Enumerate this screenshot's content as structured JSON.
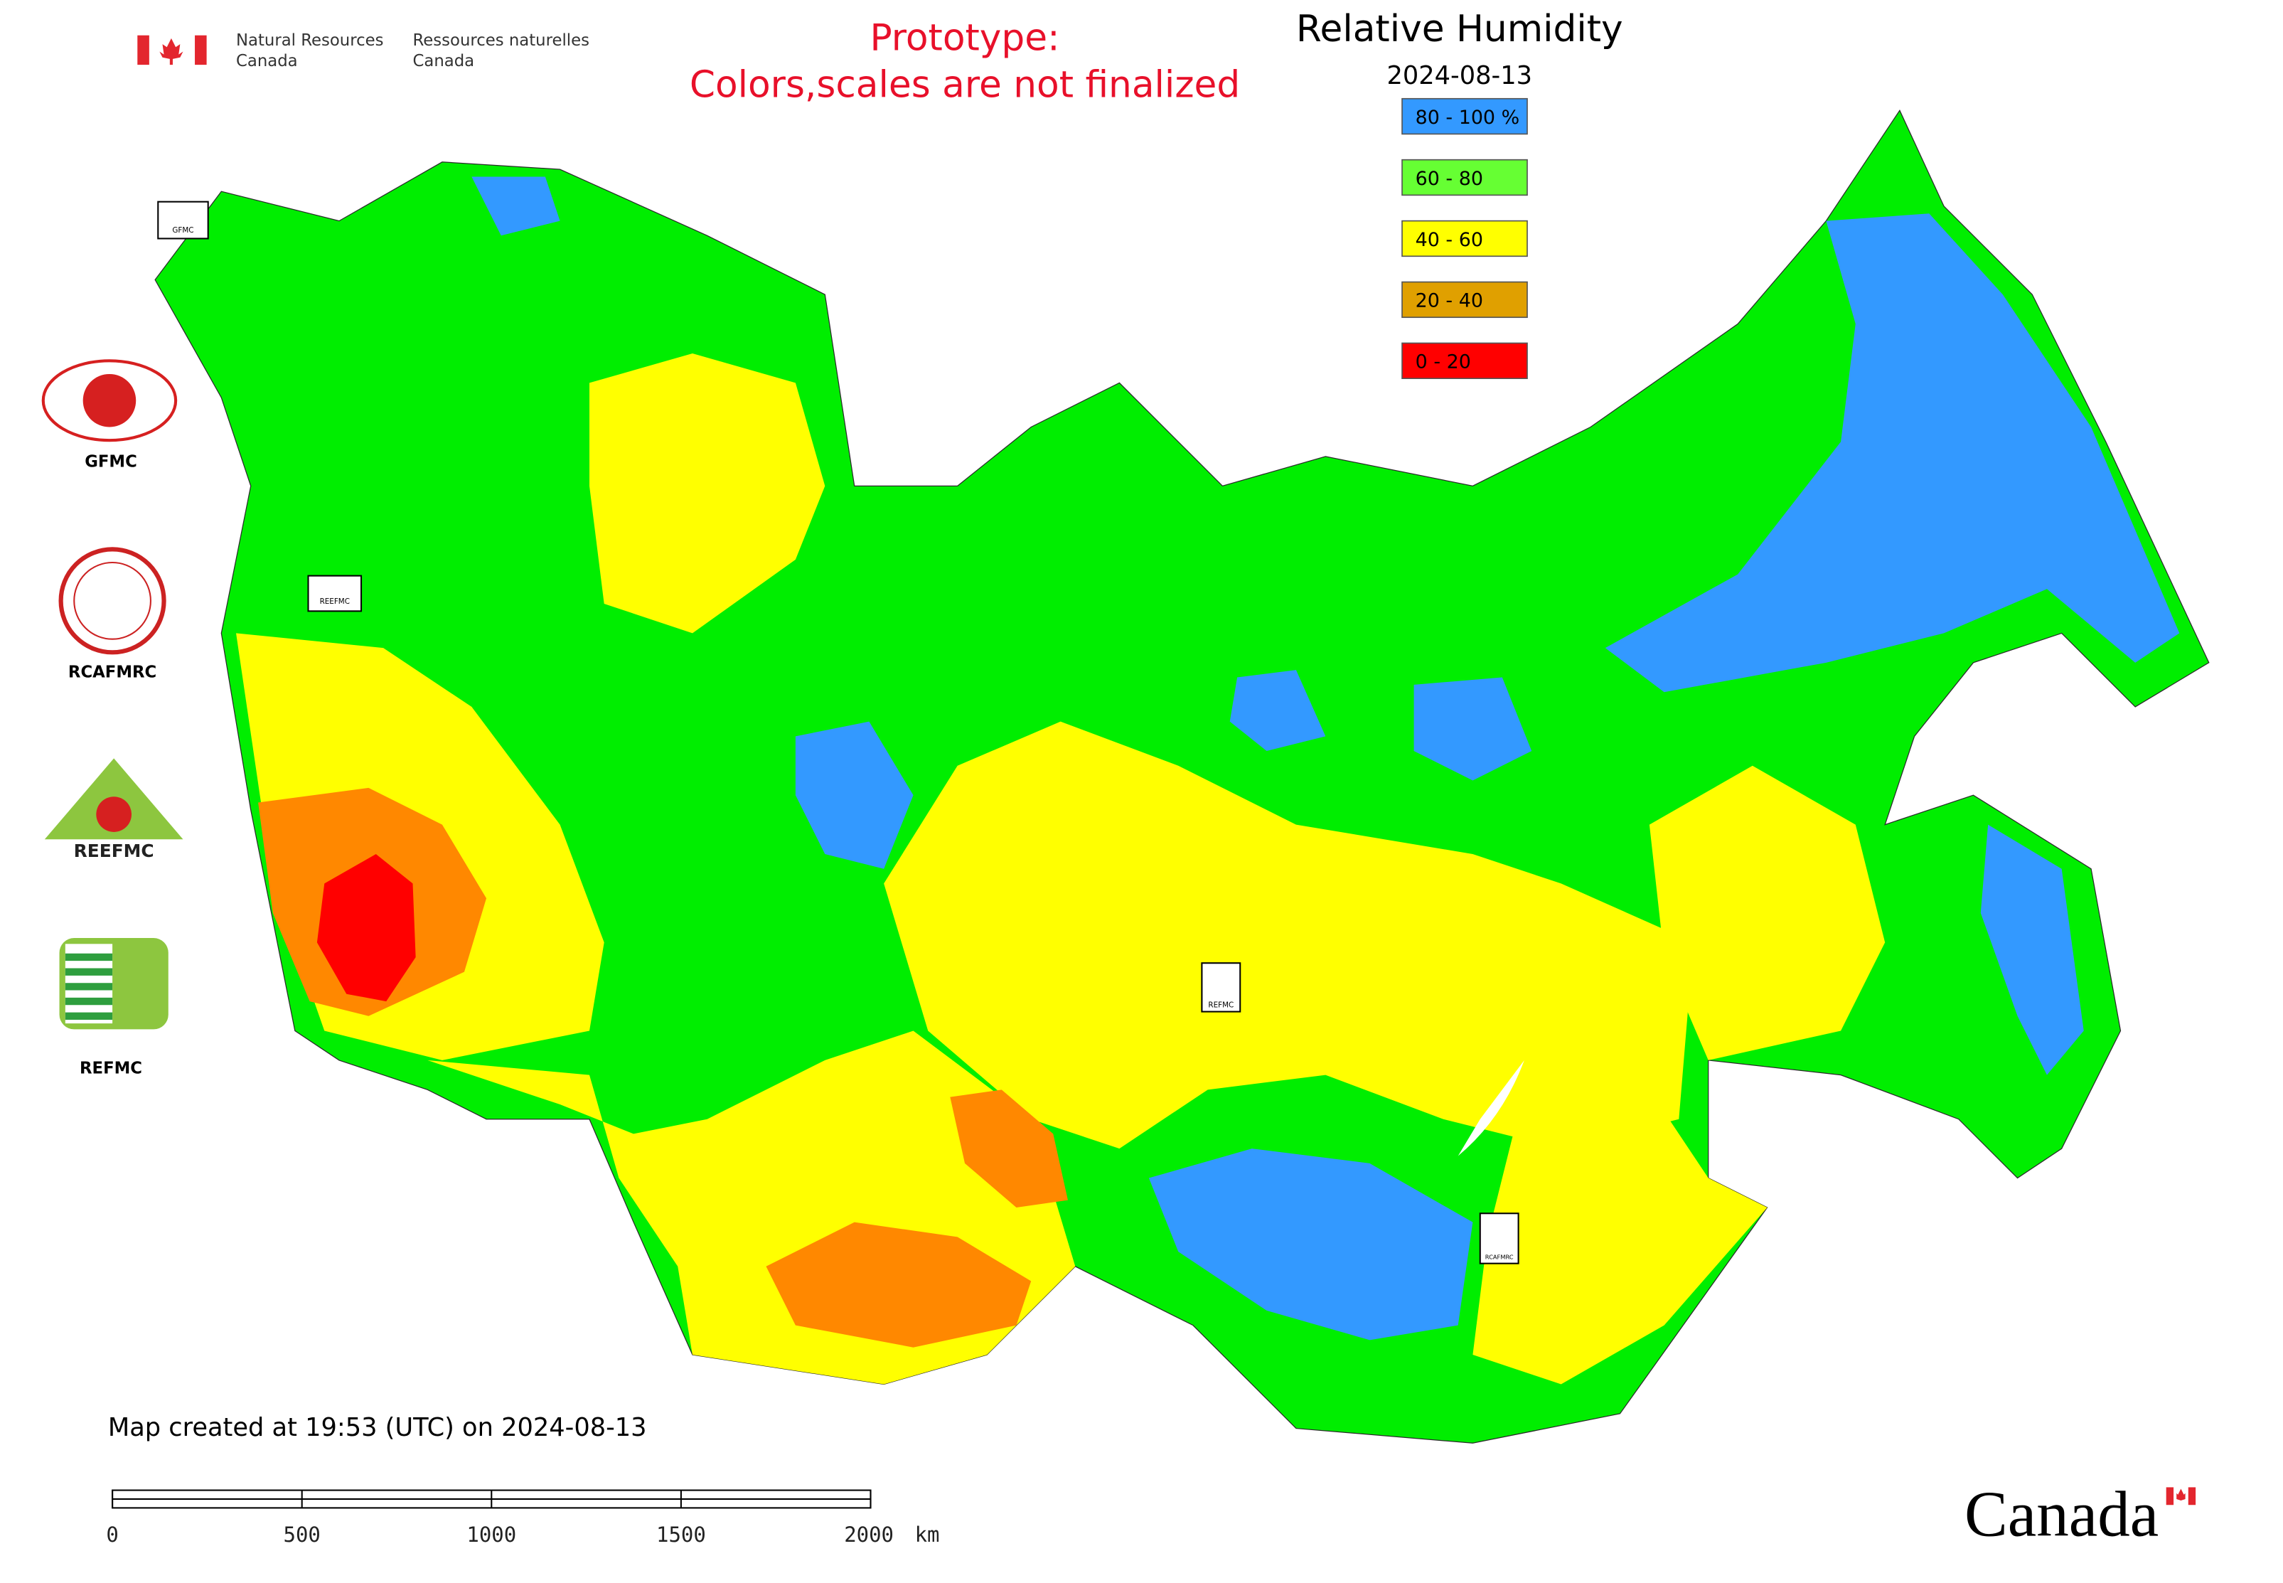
{
  "header": {
    "agency_en": [
      "Natural Resources",
      "Canada"
    ],
    "agency_fr": [
      "Ressources naturelles",
      "Canada"
    ],
    "notice": [
      "Prototype:",
      "Colors,scales are not finalized"
    ]
  },
  "map": {
    "title": "Relative Humidity",
    "date": "2024-08-13",
    "legend": [
      {
        "label": "80 - 100 %",
        "color": "#3399ff"
      },
      {
        "label": "60 - 80",
        "color": "#66ff33"
      },
      {
        "label": "40 - 60",
        "color": "#ffff00"
      },
      {
        "label": "20 - 40",
        "color": "#e0a000"
      },
      {
        "label": "0 - 20",
        "color": "#ff0000"
      }
    ],
    "footer": "Map created at 19:53 (UTC) on 2024-08-13",
    "scale_bar": {
      "xlim": [
        0,
        2000
      ],
      "ticks": [
        0,
        500,
        1000,
        1500,
        2000
      ],
      "unit": "km"
    }
  },
  "logos": [
    {
      "label": "GFMC"
    },
    {
      "label": "RCAFMRC"
    },
    {
      "label": "REEFMC"
    },
    {
      "label": "REFMC"
    }
  ],
  "wordmark": "Canada"
}
